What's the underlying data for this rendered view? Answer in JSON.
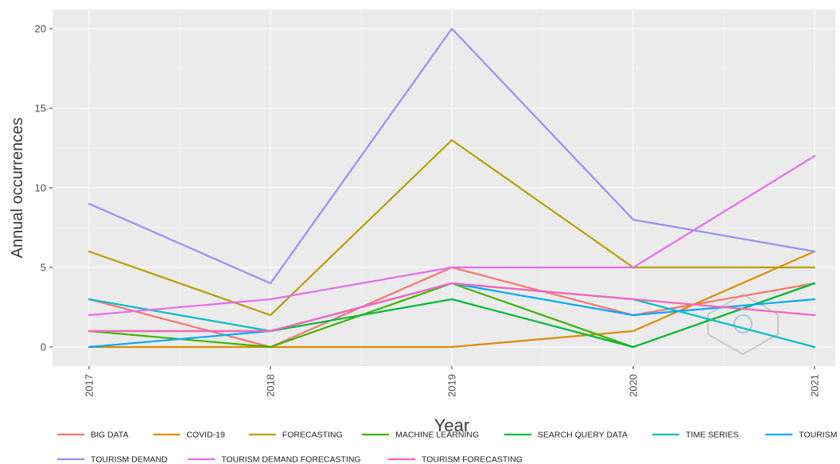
{
  "chart_data": {
    "type": "line",
    "xlabel": "Year",
    "ylabel": "Annual occurrences",
    "categories": [
      "2017",
      "2018",
      "2019",
      "2020",
      "2021"
    ],
    "ylim": [
      -1.2,
      21.2
    ],
    "yticks": [
      0,
      5,
      10,
      15,
      20
    ],
    "grid": true,
    "legend_position": "bottom",
    "series": [
      {
        "name": "BIG DATA",
        "color": "#f8766d",
        "values": [
          3,
          0,
          5,
          2,
          4
        ]
      },
      {
        "name": "COVID-19",
        "color": "#de8c00",
        "values": [
          0,
          0,
          0,
          1,
          6
        ]
      },
      {
        "name": "FORECASTING",
        "color": "#b79f00",
        "values": [
          6,
          2,
          13,
          5,
          5
        ]
      },
      {
        "name": "MACHINE LEARNING",
        "color": "#39b600",
        "values": [
          1,
          0,
          4,
          0,
          4
        ]
      },
      {
        "name": "SEARCH QUERY DATA",
        "color": "#00ba38",
        "values": [
          1,
          1,
          3,
          0,
          4
        ]
      },
      {
        "name": "TIME SERIES",
        "color": "#00bfc4",
        "values": [
          3,
          1,
          4,
          3,
          0
        ]
      },
      {
        "name": "TOURISM",
        "color": "#00a9ff",
        "values": [
          0,
          1,
          4,
          2,
          3
        ]
      },
      {
        "name": "TOURISM DEMAND",
        "color": "#9590ff",
        "values": [
          9,
          4,
          20,
          8,
          6
        ]
      },
      {
        "name": "TOURISM DEMAND FORECASTING",
        "color": "#e76bf3",
        "values": [
          2,
          3,
          5,
          5,
          12
        ]
      },
      {
        "name": "TOURISM FORECASTING",
        "color": "#ff62bc",
        "values": [
          1,
          1,
          4,
          3,
          2
        ]
      }
    ]
  }
}
